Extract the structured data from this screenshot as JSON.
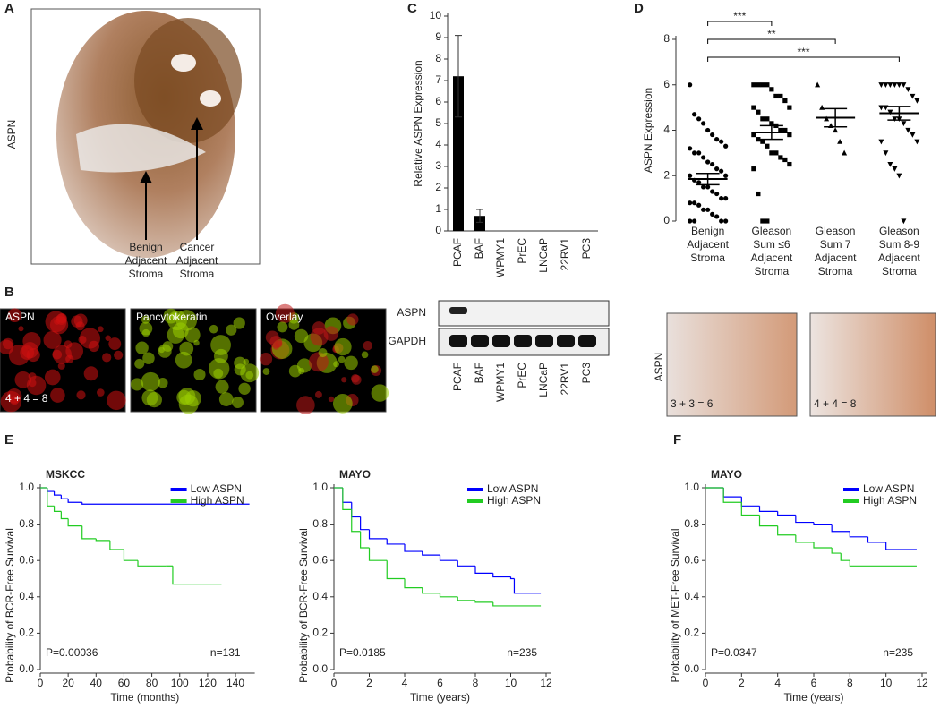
{
  "panel_letters": [
    "A",
    "B",
    "C",
    "D",
    "E",
    "F"
  ],
  "panel_a": {
    "stain_label": "ASPN",
    "annotations": [
      [
        "Benign",
        "Adjacent",
        "Stroma"
      ],
      [
        "Cancer",
        "Adjacent",
        "Stroma"
      ]
    ]
  },
  "panel_b": {
    "image_labels": [
      "ASPN",
      "Pancytokeratin",
      "Overlay"
    ],
    "score": "4 + 4 = 8"
  },
  "blot": {
    "rows": [
      "ASPN",
      "GAPDH"
    ]
  },
  "panel_d_images": {
    "stain_label": "ASPN",
    "scores": [
      "3 + 3 = 6",
      "4 + 4 = 8"
    ]
  },
  "chart_data": [
    {
      "type": "bar",
      "ylabel": "Relative ASPN Expression",
      "categories": [
        "PCAF",
        "BAF",
        "WPMY1",
        "PrEC",
        "LNCaP",
        "22RV1",
        "PC3"
      ],
      "values": [
        7.2,
        0.7,
        0,
        0,
        0,
        0,
        0
      ],
      "errors": [
        1.9,
        0.3,
        0,
        0,
        0,
        0,
        0
      ],
      "color": "#000000",
      "ylim": [
        0,
        10
      ],
      "yticks": [
        0,
        1,
        2,
        3,
        4,
        5,
        6,
        7,
        8,
        9,
        10
      ]
    },
    {
      "type": "dot",
      "ylabel": "ASPN Expression",
      "categories": [
        [
          "Benign",
          "Adjacent",
          "Stroma"
        ],
        [
          "Gleason",
          "Sum ≤6",
          "Adjacent",
          "Stroma"
        ],
        [
          "Gleason",
          "Sum 7",
          "Adjacent",
          "Stroma"
        ],
        [
          "Gleason",
          "Sum 8-9",
          "Adjacent",
          "Stroma"
        ]
      ],
      "markers": [
        "circle",
        "square",
        "triangle",
        "triangle-down"
      ],
      "points": [
        [
          6,
          4.7,
          4.5,
          4.3,
          4,
          3.8,
          3.6,
          3.5,
          3.3,
          3.2,
          3,
          3,
          2.8,
          2.6,
          2.5,
          2.3,
          2.2,
          2,
          2,
          1.8,
          1.7,
          1.5,
          1.5,
          1.3,
          1.2,
          1,
          1,
          0.8,
          0.8,
          0.7,
          0.5,
          0.5,
          0.3,
          0.2,
          0,
          0,
          0,
          0
        ],
        [
          6,
          6,
          6,
          6,
          5.8,
          5.5,
          5.5,
          5.3,
          5,
          5,
          4.8,
          4.5,
          4.5,
          4.3,
          4.2,
          4,
          4,
          3.8,
          3.8,
          3.6,
          3.5,
          3.3,
          3,
          3,
          2.8,
          2.7,
          2.5,
          2.3,
          1.2,
          0,
          0
        ],
        [
          6,
          5,
          4.5,
          4.2,
          4,
          3.5,
          3
        ],
        [
          6,
          6,
          6,
          6,
          6,
          6,
          5.8,
          5.5,
          5.3,
          5,
          5,
          4.8,
          4.5,
          4.5,
          4.3,
          4,
          3.8,
          3.5,
          3.5,
          3,
          2.5,
          2.3,
          2,
          0
        ]
      ],
      "means": [
        1.85,
        3.9,
        4.55,
        4.75
      ],
      "sem": [
        0.25,
        0.3,
        0.4,
        0.3
      ],
      "significance": [
        {
          "from": 0,
          "to": 1,
          "label": "***"
        },
        {
          "from": 0,
          "to": 2,
          "label": "**"
        },
        {
          "from": 0,
          "to": 3,
          "label": "***"
        }
      ],
      "ylim": [
        0,
        8
      ],
      "yticks": [
        0,
        2,
        4,
        6,
        8
      ]
    },
    {
      "type": "km",
      "title": "MSKCC",
      "xlabel": "Time (months)",
      "ylabel": "Probability of BCR-Free Survival",
      "series": [
        {
          "name": "Low ASPN",
          "color": "#0000ff",
          "x": [
            0,
            5,
            10,
            15,
            20,
            30,
            150
          ],
          "values": [
            1,
            0.98,
            0.96,
            0.94,
            0.92,
            0.91,
            0.91
          ]
        },
        {
          "name": "High ASPN",
          "color": "#22cc22",
          "x": [
            0,
            5,
            10,
            15,
            20,
            30,
            40,
            50,
            60,
            70,
            90,
            95,
            130
          ],
          "values": [
            1,
            0.9,
            0.87,
            0.83,
            0.79,
            0.72,
            0.71,
            0.66,
            0.6,
            0.57,
            0.57,
            0.47,
            0.47
          ]
        }
      ],
      "xlim": [
        0,
        150
      ],
      "xticks": [
        0,
        20,
        40,
        60,
        80,
        100,
        120,
        140
      ],
      "ylim": [
        0,
        1
      ],
      "yticks": [
        {
          "value": 0,
          "label": "0.0"
        },
        {
          "value": 0.2,
          "label": "0.2"
        },
        {
          "value": 0.4,
          "label": "0.4"
        },
        {
          "value": 0.6,
          "label": "0.6"
        },
        {
          "value": 0.8,
          "label": "0.8"
        },
        {
          "value": 1,
          "label": "1.0"
        }
      ],
      "p_value": "P=0.00036",
      "n_label": "n=131",
      "legend": "upper right"
    },
    {
      "type": "km",
      "title": "MAYO",
      "xlabel": "Time (years)",
      "ylabel": "Probability of BCR-Free Survival",
      "series": [
        {
          "name": "Low ASPN",
          "color": "#0000ff",
          "x": [
            0,
            0.5,
            1,
            1.5,
            2,
            3,
            4,
            5,
            6,
            7,
            8,
            9,
            10,
            10.2,
            11.7
          ],
          "values": [
            1,
            0.92,
            0.84,
            0.77,
            0.72,
            0.69,
            0.65,
            0.63,
            0.6,
            0.57,
            0.53,
            0.51,
            0.5,
            0.42,
            0.42
          ]
        },
        {
          "name": "High ASPN",
          "color": "#22cc22",
          "x": [
            0,
            0.5,
            1,
            1.5,
            2,
            3,
            4,
            5,
            6,
            7,
            8,
            9,
            10,
            11.7
          ],
          "values": [
            1,
            0.88,
            0.76,
            0.67,
            0.6,
            0.5,
            0.45,
            0.42,
            0.4,
            0.38,
            0.37,
            0.35,
            0.35,
            0.35
          ]
        }
      ],
      "xlim": [
        0,
        12
      ],
      "xticks": [
        0,
        2,
        4,
        6,
        8,
        10,
        12
      ],
      "ylim": [
        0,
        1
      ],
      "yticks": [
        {
          "value": 0,
          "label": "0.0"
        },
        {
          "value": 0.2,
          "label": "0.2"
        },
        {
          "value": 0.4,
          "label": "0.4"
        },
        {
          "value": 0.6,
          "label": "0.6"
        },
        {
          "value": 0.8,
          "label": "0.8"
        },
        {
          "value": 1,
          "label": "1.0"
        }
      ],
      "p_value": "P=0.0185",
      "n_label": "n=235",
      "legend": "upper right"
    },
    {
      "type": "km",
      "title": "MAYO",
      "xlabel": "Time (years)",
      "ylabel": "Probability of MET-Free Survival",
      "series": [
        {
          "name": "Low ASPN",
          "color": "#0000ff",
          "x": [
            0,
            1,
            2,
            3,
            4,
            5,
            6,
            7,
            8,
            9,
            10,
            11.7
          ],
          "values": [
            1,
            0.95,
            0.9,
            0.87,
            0.85,
            0.81,
            0.8,
            0.76,
            0.73,
            0.7,
            0.66,
            0.66
          ]
        },
        {
          "name": "High ASPN",
          "color": "#22cc22",
          "x": [
            0,
            1,
            2,
            3,
            4,
            5,
            6,
            7,
            7.5,
            8,
            11.7
          ],
          "values": [
            1,
            0.92,
            0.85,
            0.79,
            0.74,
            0.7,
            0.67,
            0.64,
            0.6,
            0.57,
            0.57
          ]
        }
      ],
      "xlim": [
        0,
        12
      ],
      "xticks": [
        0,
        2,
        4,
        6,
        8,
        10,
        12
      ],
      "ylim": [
        0,
        1
      ],
      "yticks": [
        {
          "value": 0,
          "label": "0.0"
        },
        {
          "value": 0.2,
          "label": "0.2"
        },
        {
          "value": 0.4,
          "label": "0.4"
        },
        {
          "value": 0.6,
          "label": "0.6"
        },
        {
          "value": 0.8,
          "label": "0.8"
        },
        {
          "value": 1,
          "label": "1.0"
        }
      ],
      "p_value": "P=0.0347",
      "n_label": "n=235",
      "legend": "upper right"
    }
  ]
}
